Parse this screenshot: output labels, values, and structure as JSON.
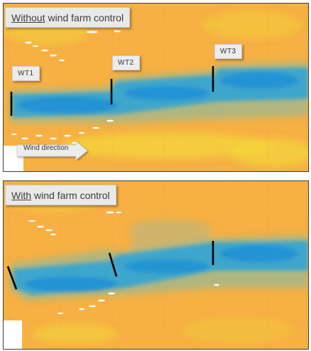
{
  "colors": {
    "background": "#f6b043",
    "wake_dark": "#1b8fd6",
    "wake_mid": "#3aa6c8",
    "wake_edge": "#8fb89a",
    "highlight": "#f3d23a",
    "grid": "#c98a2a"
  },
  "top_panel": {
    "title_underlined": "Without",
    "title_rest": "wind farm control",
    "turbines": [
      {
        "label": "WT1"
      },
      {
        "label": "WT2"
      },
      {
        "label": "WT3"
      }
    ],
    "wind_direction_label": "Wind direction"
  },
  "bottom_panel": {
    "title_underlined": "With",
    "title_rest": "wind farm control"
  }
}
